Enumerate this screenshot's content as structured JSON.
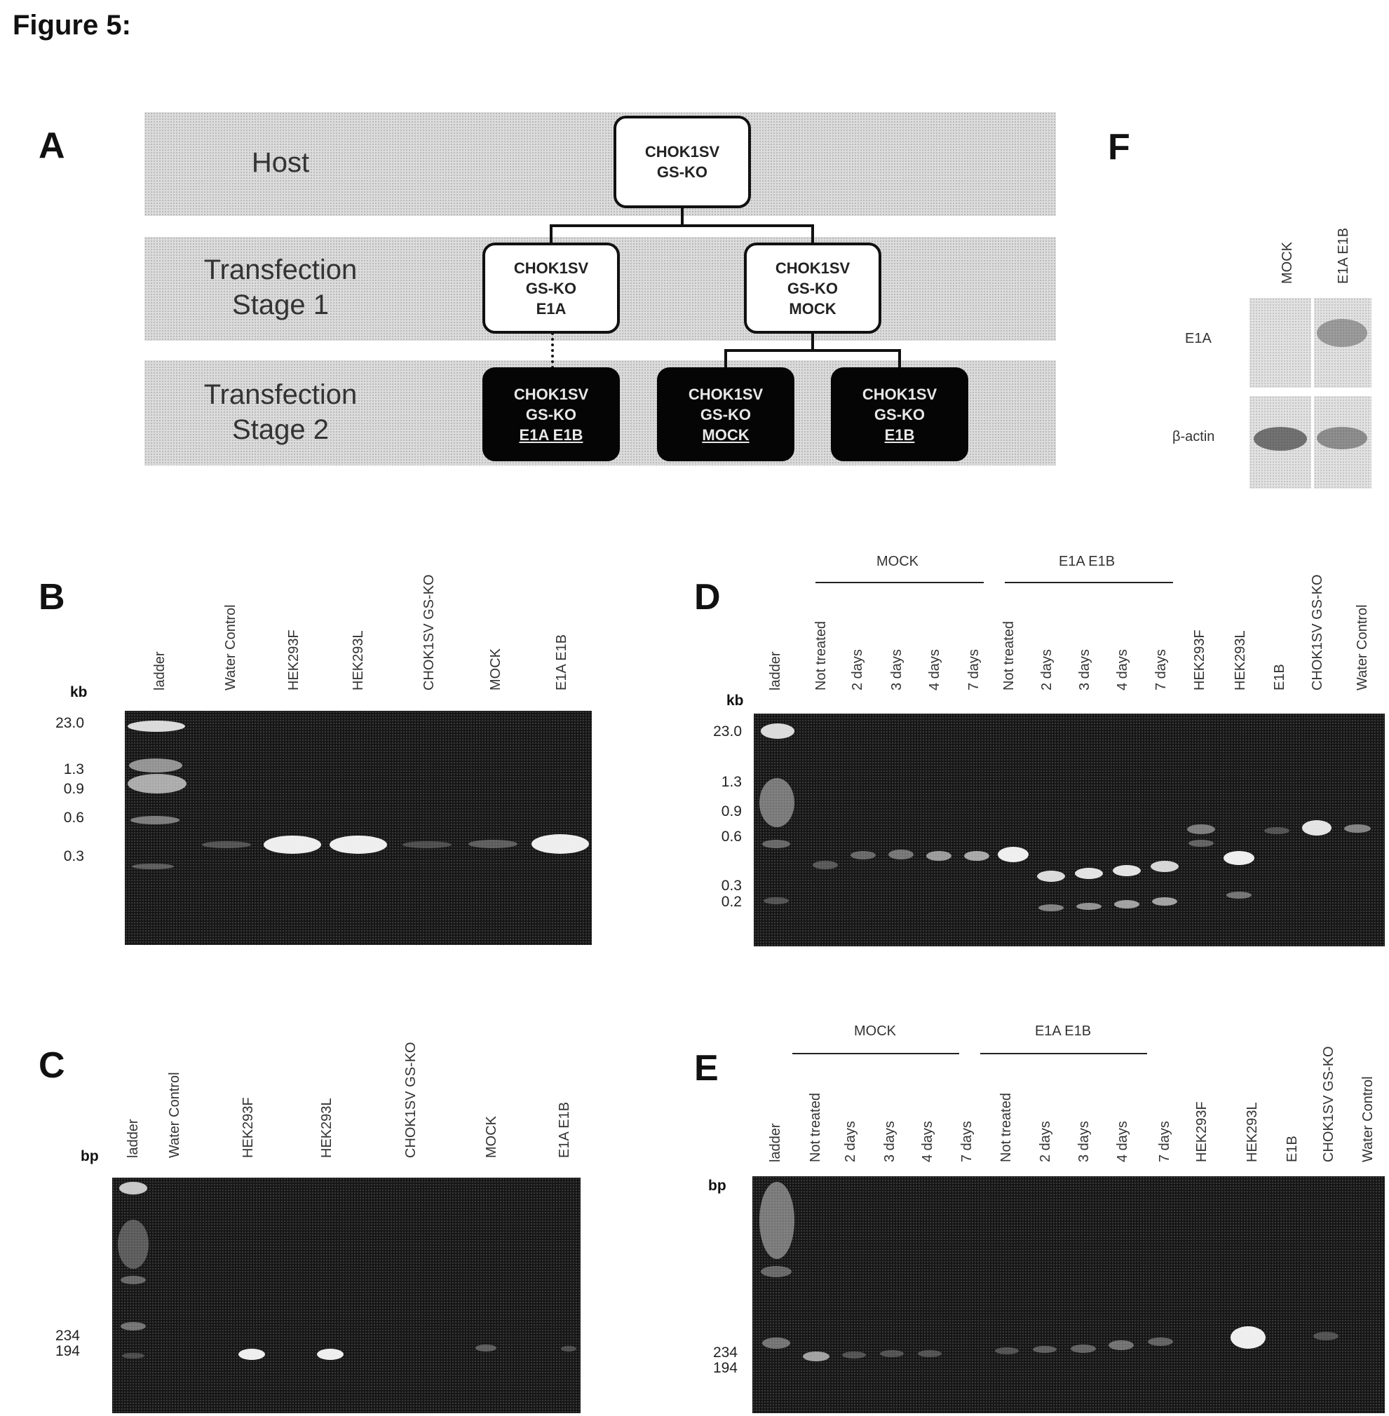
{
  "figure_title": "Figure 5:",
  "panels": {
    "A": {
      "letter": "A",
      "stages": {
        "host": "Host",
        "t1_line1": "Transfection",
        "t1_line2": "Stage 1",
        "t2_line1": "Transfection",
        "t2_line2": "Stage 2"
      },
      "nodes": {
        "host": [
          "CHOK1SV",
          "GS-KO"
        ],
        "e1a": [
          "CHOK1SV",
          "GS-KO",
          "E1A"
        ],
        "mock1": [
          "CHOK1SV",
          "GS-KO",
          "MOCK"
        ],
        "e1a_e1b": [
          "CHOK1SV",
          "GS-KO",
          "E1A E1B"
        ],
        "mock2": [
          "CHOK1SV",
          "GS-KO",
          "MOCK"
        ],
        "e1b": [
          "CHOK1SV",
          "GS-KO",
          "E1B"
        ]
      }
    },
    "B": {
      "letter": "B",
      "unit": "kb",
      "lanes": [
        "ladder",
        "Water Control",
        "HEK293F",
        "HEK293L",
        "CHOK1SV GS-KO",
        "MOCK",
        "E1A E1B"
      ],
      "ticks": [
        "23.0",
        "1.3",
        "0.9",
        "0.6",
        "0.3"
      ]
    },
    "C": {
      "letter": "C",
      "unit": "bp",
      "lanes": [
        "ladder",
        "Water Control",
        "HEK293F",
        "HEK293L",
        "CHOK1SV GS-KO",
        "MOCK",
        "E1A E1B"
      ],
      "ticks": [
        "234",
        "194"
      ]
    },
    "D": {
      "letter": "D",
      "unit": "kb",
      "group_mock": "MOCK",
      "group_e1ae1b": "E1A E1B",
      "lanes": [
        "ladder",
        "Not treated",
        "2 days",
        "3 days",
        "4 days",
        "7 days",
        "Not treated",
        "2 days",
        "3 days",
        "4 days",
        "7 days",
        "HEK293F",
        "HEK293L",
        "E1B",
        "CHOK1SV GS-KO",
        "Water Control"
      ],
      "ticks": [
        "23.0",
        "1.3",
        "0.9",
        "0.6",
        "0.3",
        "0.2"
      ]
    },
    "E": {
      "letter": "E",
      "unit": "bp",
      "group_mock": "MOCK",
      "group_e1ae1b": "E1A E1B",
      "lanes": [
        "ladder",
        "Not treated",
        "2 days",
        "3 days",
        "4 days",
        "7 days",
        "Not treated",
        "2 days",
        "3 days",
        "4 days",
        "7 days",
        "HEK293F",
        "HEK293L",
        "E1B",
        "CHOK1SV GS-KO",
        "Water Control"
      ],
      "ticks": [
        "234",
        "194"
      ]
    },
    "F": {
      "letter": "F",
      "lanes": [
        "MOCK",
        "E1A E1B"
      ],
      "rows": [
        "E1A",
        "β-actin"
      ]
    }
  }
}
